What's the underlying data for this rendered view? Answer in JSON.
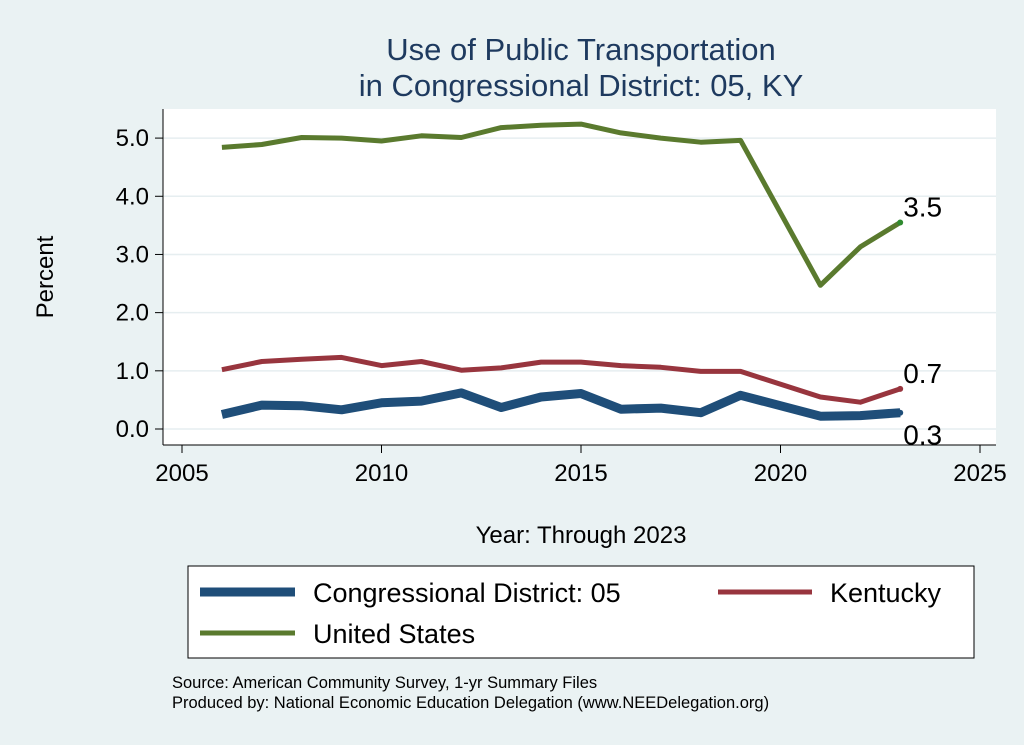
{
  "chart_data": {
    "type": "line",
    "title": [
      "Use of Public Transportation",
      "in Congressional District: 05, KY"
    ],
    "xlabel": "Year: Through 2023",
    "ylabel": "Percent",
    "xlim": [
      2005,
      2025
    ],
    "ylim": [
      0,
      5.5
    ],
    "x_ticks": [
      2005,
      2010,
      2015,
      2020,
      2025
    ],
    "y_ticks": [
      0,
      1,
      2,
      3,
      4,
      5
    ],
    "y_tick_labels": [
      "0.0",
      "1.0",
      "2.0",
      "3.0",
      "4.0",
      "5.0"
    ],
    "grid": true,
    "x": [
      2006,
      2007,
      2008,
      2009,
      2010,
      2011,
      2012,
      2013,
      2014,
      2015,
      2016,
      2017,
      2018,
      2019,
      2021,
      2022,
      2023
    ],
    "series": [
      {
        "name": "Congressional District: 05",
        "color": "#1f4e79",
        "width": 9,
        "values": [
          0.25,
          0.41,
          0.4,
          0.33,
          0.45,
          0.48,
          0.62,
          0.37,
          0.55,
          0.61,
          0.34,
          0.36,
          0.28,
          0.58,
          0.22,
          0.23,
          0.28
        ],
        "end_label": "0.3",
        "end_label_offset": "below"
      },
      {
        "name": "Kentucky",
        "color": "#98353e",
        "width": 5,
        "values": [
          1.02,
          1.16,
          1.2,
          1.23,
          1.09,
          1.16,
          1.01,
          1.05,
          1.15,
          1.15,
          1.09,
          1.06,
          0.99,
          0.99,
          0.55,
          0.46,
          0.69
        ],
        "end_label": "0.7",
        "end_label_offset": "above"
      },
      {
        "name": "United States",
        "color": "#5a7a2e",
        "width": 5,
        "values": [
          4.84,
          4.89,
          5.01,
          5.0,
          4.95,
          5.04,
          5.01,
          5.18,
          5.22,
          5.24,
          5.09,
          5.0,
          4.93,
          4.96,
          2.47,
          3.13,
          3.55
        ],
        "end_label": "3.5",
        "end_label_offset": "above"
      }
    ],
    "legend": {
      "placement": "bottom",
      "items": [
        "Congressional District: 05",
        "Kentucky",
        "United States"
      ]
    }
  },
  "source": {
    "line1": "Source: American Community Survey, 1-yr Summary Files",
    "line2": "Produced by: National Economic Education Delegation (www.NEEDelegation.org)"
  }
}
